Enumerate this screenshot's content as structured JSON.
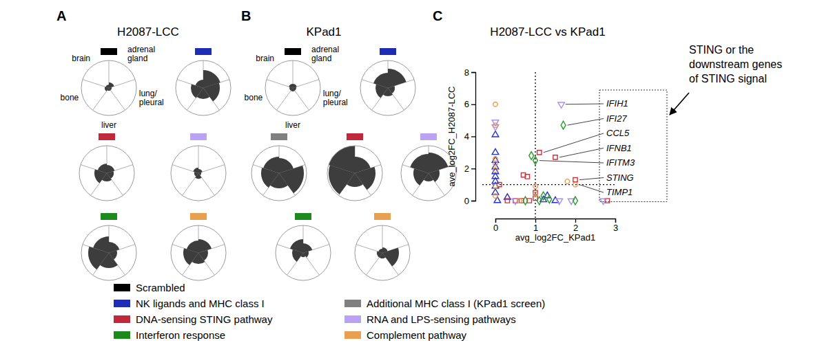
{
  "chart_data": [
    {
      "panel": "A",
      "type": "rose",
      "title": "H2087-LCC",
      "categories": [
        "adrenal gland",
        "lung/pleural",
        "liver",
        "bone",
        "brain"
      ],
      "rlim": [
        0,
        1
      ],
      "tick_labels": false,
      "series": [
        {
          "name": "Scrambled",
          "color": "#000000",
          "values": [
            0.2,
            0.1,
            0.1,
            0.15,
            0.12
          ]
        },
        {
          "name": "NK ligands and MHC class I",
          "color": "#1f2db4",
          "values": [
            0.65,
            0.6,
            0.4,
            0.45,
            0.3
          ]
        },
        {
          "name": "DNA-sensing STING pathway",
          "color": "#c0283c",
          "values": [
            0.3,
            0.25,
            0.3,
            0.45,
            0.35
          ]
        },
        {
          "name": "RNA and LPS-sensing pathways",
          "color": "#b9a3f2",
          "values": [
            0.15,
            0.1,
            0.2,
            0.15,
            0.2
          ]
        },
        {
          "name": "Interferon response",
          "color": "#1e8a1e",
          "values": [
            0.4,
            0.3,
            0.55,
            0.75,
            0.6
          ]
        },
        {
          "name": "Complement pathway",
          "color": "#e8a050",
          "values": [
            0.5,
            0.35,
            0.4,
            0.55,
            0.45
          ]
        }
      ]
    },
    {
      "panel": "B",
      "type": "rose",
      "title": "KPad1",
      "categories": [
        "adrenal gland",
        "lung/pleural",
        "liver",
        "bone",
        "brain"
      ],
      "rlim": [
        0,
        1
      ],
      "tick_labels": false,
      "legend": "bottom",
      "series": [
        {
          "name": "Scrambled",
          "color": "#000000",
          "values": [
            0.15,
            0.12,
            0.12,
            0.12,
            0.15
          ]
        },
        {
          "name": "NK ligands and MHC class I",
          "color": "#1f2db4",
          "values": [
            0.7,
            0.25,
            0.3,
            0.45,
            0.55
          ]
        },
        {
          "name": "Additional MHC class I (KPad1 screen)",
          "color": "#808080",
          "values": [
            0.55,
            0.9,
            0.55,
            0.65,
            0.6
          ]
        },
        {
          "name": "DNA-sensing STING pathway",
          "color": "#c0283c",
          "values": [
            0.6,
            0.75,
            0.5,
            0.95,
            1.0
          ]
        },
        {
          "name": "RNA and LPS-sensing pathways",
          "color": "#b9a3f2",
          "values": [
            0.75,
            0.4,
            0.3,
            0.55,
            0.7
          ]
        },
        {
          "name": "Interferon response",
          "color": "#1e8a1e",
          "values": [
            0.35,
            0.2,
            0.15,
            0.4,
            0.5
          ]
        },
        {
          "name": "Complement pathway",
          "color": "#e8a050",
          "values": [
            0.2,
            0.6,
            0.2,
            0.2,
            0.15
          ]
        }
      ]
    },
    {
      "panel": "C",
      "type": "scatter",
      "title": "H2087-LCC vs KPad1",
      "x_label": "avg_log2FC_KPad1",
      "y_label": "ave_log2FC_H2087-LCC",
      "xlim": [
        0,
        3
      ],
      "ylim": [
        0,
        8
      ],
      "xticks": [
        0,
        1,
        2,
        3
      ],
      "yticks": [
        0,
        2,
        4,
        6,
        8
      ],
      "ref_x": 1,
      "ref_y": 1,
      "annotation": "STING or the downstream genes of STING signal",
      "series": [
        {
          "name": "NK ligands and MHC class I",
          "color": "#2233cc",
          "marker": "triangle-up",
          "x": [
            0,
            0,
            0,
            0,
            0,
            0,
            0,
            0,
            0,
            0.05,
            0.3,
            1.3,
            1.5,
            1.2
          ],
          "values": [
            4.1,
            3.0,
            2.5,
            2.1,
            1.8,
            1.5,
            1.2,
            0.9,
            0.5,
            0,
            0.2,
            0.3,
            0,
            0.05
          ],
          "point_labels": [
            null,
            null,
            null,
            null,
            null,
            null,
            null,
            null,
            null,
            null,
            null,
            null,
            null,
            null
          ]
        },
        {
          "name": "DNA-sensing STING pathway",
          "color": "#d0303a",
          "marker": "square",
          "x": [
            0.1,
            0.7,
            0.8,
            1.1,
            1.5,
            2.0,
            0.3,
            0.5,
            0.65,
            0.85,
            1.0,
            1.0,
            2.8
          ],
          "values": [
            1.0,
            1.6,
            1.5,
            3.0,
            2.7,
            1.3,
            0,
            0,
            0,
            0,
            0.5,
            0.15,
            0
          ],
          "point_labels": [
            null,
            null,
            null,
            "CCL5",
            "IFNB1",
            "STING",
            null,
            null,
            null,
            null,
            null,
            null,
            null
          ]
        },
        {
          "name": "RNA and LPS-sensing pathways",
          "color": "#a98ff0",
          "marker": "triangle-down",
          "x": [
            0,
            0,
            1.65,
            0.5,
            1.6,
            1.9,
            2.7
          ],
          "values": [
            4.9,
            4.6,
            6.0,
            0,
            0,
            0,
            0
          ],
          "point_labels": [
            null,
            null,
            "IFIH1",
            null,
            null,
            null,
            null
          ]
        },
        {
          "name": "Interferon response",
          "color": "#2a9a2a",
          "marker": "diamond",
          "x": [
            1.7,
            0.9,
            1.0,
            1.2,
            1.35,
            1.1,
            2.0,
            0.75
          ],
          "values": [
            4.7,
            2.8,
            2.5,
            0.3,
            0.1,
            0,
            0,
            0
          ],
          "point_labels": [
            "IFI27",
            null,
            "IFITM3",
            null,
            null,
            null,
            null,
            null
          ]
        },
        {
          "name": "Complement pathway",
          "color": "#e89a50",
          "marker": "circle",
          "x": [
            0,
            0,
            0,
            0,
            0,
            0,
            0,
            1.0,
            1.0,
            1.8,
            2.0,
            0.6
          ],
          "values": [
            6.0,
            4.7,
            2.6,
            2.3,
            1.9,
            0.9,
            0.3,
            0.9,
            0.4,
            1.2,
            1.0,
            0
          ],
          "point_labels": [
            null,
            null,
            null,
            null,
            null,
            null,
            null,
            null,
            null,
            null,
            "TIMP1",
            null
          ]
        }
      ]
    }
  ]
}
